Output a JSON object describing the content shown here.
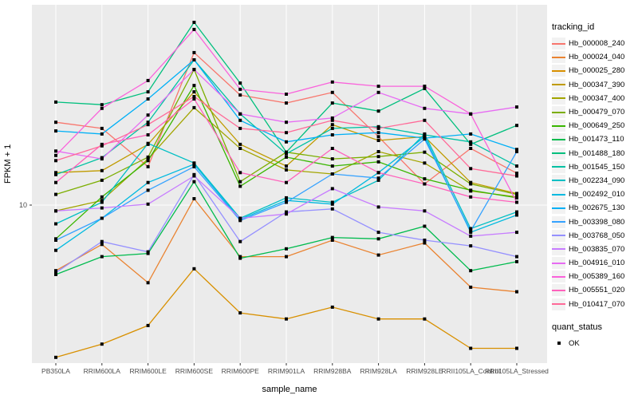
{
  "chart_data": {
    "type": "line",
    "title": "",
    "xlabel": "sample_name",
    "ylabel": "FPKM + 1",
    "y_scale": "log10",
    "y_tick_labels": [
      "10"
    ],
    "y_tick_values": [
      10
    ],
    "ylim_approx": [
      1.9,
      75
    ],
    "grid": "vertical-white-on-grey",
    "legend_position": "right",
    "legend_title": "tracking_id",
    "point_legend": {
      "title": "quant_status",
      "items": [
        {
          "label": "OK",
          "shape": "black-square"
        }
      ]
    },
    "categories": [
      "PB350LA",
      "RRIM600LA",
      "RRIM600LE",
      "RRIM600SE",
      "RRIM600PE",
      "RRIM901LA",
      "RRIM928BA",
      "RRIM928LA",
      "RRIM928LE",
      "RRII105LA_Control",
      "RRII105LA_Stressed"
    ],
    "series": [
      {
        "name": "Hb_000008_240",
        "color": "#F8766D",
        "values": [
          24.0,
          22.5,
          15.0,
          50.1,
          32.0,
          29.4,
          32.9,
          20.6,
          12.5,
          18.2,
          14.0
        ]
      },
      {
        "name": "Hb_000024_040",
        "color": "#EA8331",
        "values": [
          5.0,
          6.6,
          4.4,
          10.7,
          5.8,
          5.8,
          6.9,
          5.9,
          6.7,
          4.2,
          4.0
        ]
      },
      {
        "name": "Hb_000025_280",
        "color": "#D89000",
        "values": [
          2.0,
          2.3,
          2.8,
          5.1,
          3.2,
          3.0,
          3.4,
          3.0,
          3.0,
          2.2,
          2.2
        ]
      },
      {
        "name": "Hb_000347_390",
        "color": "#C09B00",
        "values": [
          14.1,
          14.4,
          19.0,
          33.1,
          19.0,
          15.1,
          23.4,
          19.8,
          20.6,
          12.7,
          11.3
        ]
      },
      {
        "name": "Hb_000347_400",
        "color": "#A3A500",
        "values": [
          9.4,
          10.5,
          16.3,
          28.0,
          18.2,
          14.5,
          13.9,
          17.6,
          15.6,
          11.6,
          10.9
        ]
      },
      {
        "name": "Hb_000479_070",
        "color": "#7CAE00",
        "values": [
          11.2,
          13.0,
          16.6,
          41.9,
          12.8,
          17.5,
          16.3,
          16.7,
          17.5,
          12.5,
          11.2
        ]
      },
      {
        "name": "Hb_000649_250",
        "color": "#39B600",
        "values": [
          7.0,
          10.9,
          16.0,
          35.4,
          12.2,
          16.6,
          15.1,
          15.8,
          13.2,
          11.7,
          10.8
        ]
      },
      {
        "name": "Hb_001473_110",
        "color": "#00BB4E",
        "values": [
          4.8,
          5.8,
          6.0,
          12.8,
          5.7,
          6.3,
          7.1,
          7.0,
          8.0,
          5.0,
          5.5
        ]
      },
      {
        "name": "Hb_001488_180",
        "color": "#00BF7D",
        "values": [
          29.7,
          28.9,
          33.1,
          69.0,
          36.3,
          17.5,
          29.4,
          27.0,
          34.3,
          19.0,
          23.2
        ]
      },
      {
        "name": "Hb_001545_150",
        "color": "#00C1A3",
        "values": [
          13.8,
          16.5,
          24.0,
          46.4,
          26.2,
          17.2,
          22.5,
          22.9,
          21.0,
          19.5,
          15.1
        ]
      },
      {
        "name": "Hb_002234_090",
        "color": "#00BFC4",
        "values": [
          8.2,
          10.3,
          19.2,
          15.6,
          8.7,
          10.8,
          10.3,
          13.0,
          21.2,
          7.8,
          9.3
        ]
      },
      {
        "name": "Hb_002492_010",
        "color": "#00BAE0",
        "values": [
          6.2,
          8.7,
          12.7,
          15.4,
          8.6,
          10.5,
          10.1,
          14.1,
          20.6,
          7.5,
          9.0
        ]
      },
      {
        "name": "Hb_002675_130",
        "color": "#00B0F6",
        "values": [
          21.9,
          21.2,
          30.7,
          46.4,
          24.5,
          19.5,
          21.0,
          21.5,
          20.3,
          21.2,
          18.0
        ]
      },
      {
        "name": "Hb_003398_080",
        "color": "#35A2FF",
        "values": [
          6.9,
          8.7,
          11.7,
          15.0,
          8.5,
          10.3,
          13.9,
          13.3,
          20.1,
          7.6,
          17.6
        ]
      },
      {
        "name": "Hb_003768_050",
        "color": "#9590FF",
        "values": [
          4.9,
          6.8,
          6.1,
          13.8,
          6.8,
          9.3,
          9.6,
          7.5,
          6.9,
          6.5,
          5.8
        ]
      },
      {
        "name": "Hb_003835_070",
        "color": "#C77CFF",
        "values": [
          9.4,
          9.7,
          10.1,
          13.6,
          8.7,
          9.1,
          11.9,
          9.8,
          9.4,
          7.2,
          7.5
        ]
      },
      {
        "name": "Hb_004916_010",
        "color": "#E76BF3",
        "values": [
          17.7,
          16.3,
          25.9,
          41.9,
          26.2,
          24.0,
          25.1,
          32.9,
          27.8,
          26.2,
          28.2
        ]
      },
      {
        "name": "Hb_005389_160",
        "color": "#FA62DB",
        "values": [
          16.9,
          27.8,
          37.3,
          64.0,
          34.0,
          32.3,
          36.7,
          35.1,
          35.1,
          26.2,
          10.3
        ]
      },
      {
        "name": "Hb_005551_020",
        "color": "#FF62BC",
        "values": [
          12.7,
          19.0,
          21.0,
          30.7,
          14.1,
          12.7,
          18.2,
          14.1,
          12.5,
          10.9,
          10.3
        ]
      },
      {
        "name": "Hb_010417_070",
        "color": "#FF6A98",
        "values": [
          16.0,
          18.7,
          23.4,
          31.5,
          22.5,
          21.5,
          24.5,
          22.5,
          24.5,
          14.7,
          13.6
        ]
      }
    ],
    "panel_bg": "#EBEBEB",
    "grid_color": "#FFFFFF",
    "tick_text_color": "#4D4D4D",
    "marker_color": "#000000"
  }
}
